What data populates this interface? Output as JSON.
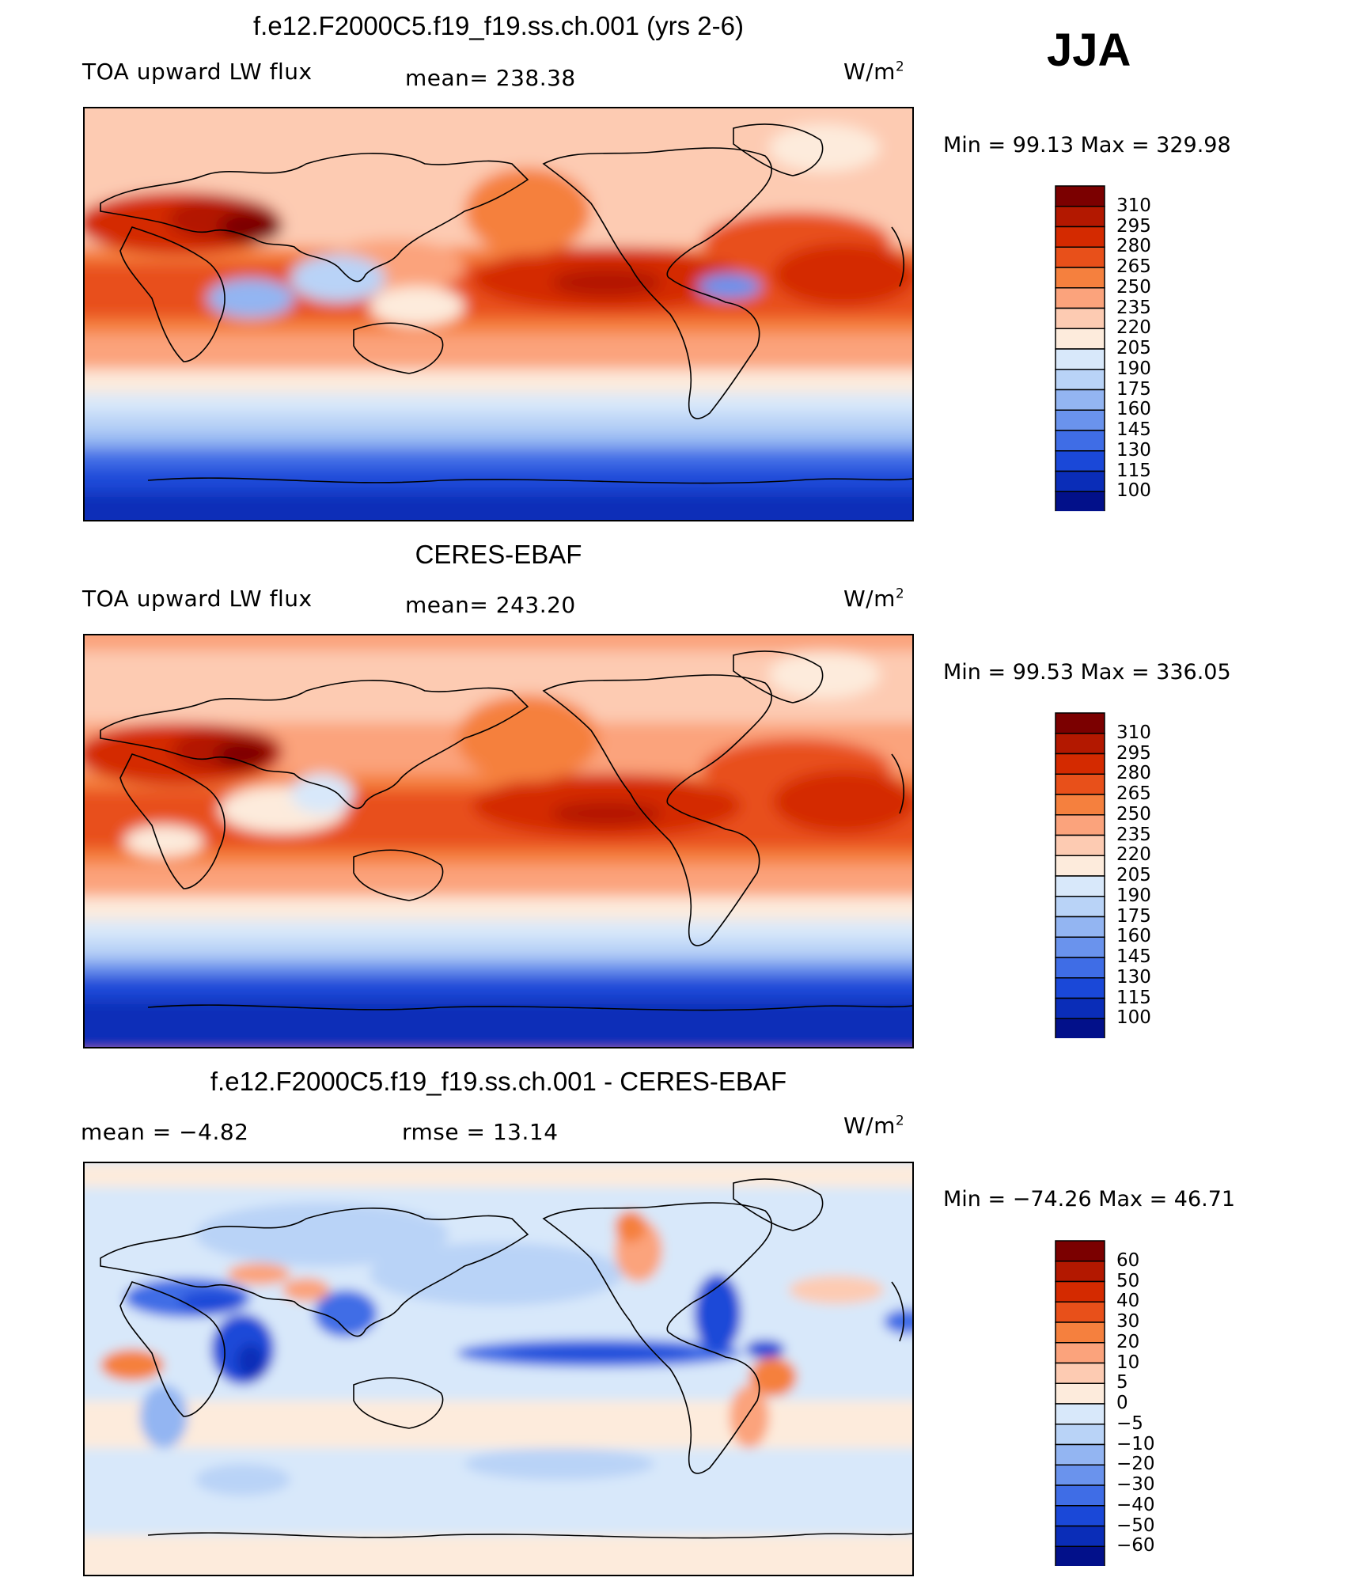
{
  "season": "JJA",
  "panels": [
    {
      "title": "f.e12.F2000C5.f19_f19.ss.ch.001 (yrs 2-6)",
      "left_label": "TOA upward LW flux",
      "center_label": "mean=  238.38",
      "units": "W/m",
      "units_exp": "2",
      "minmax": "Min =   99.13  Max  =  329.98"
    },
    {
      "title": "CERES-EBAF",
      "left_label": "TOA upward LW flux",
      "center_label": "mean=  243.20",
      "units": "W/m",
      "units_exp": "2",
      "minmax": "Min =   99.53  Max  =  336.05"
    },
    {
      "title": "f.e12.F2000C5.f19_f19.ss.ch.001 - CERES-EBAF",
      "left_label": "mean  =    −4.82",
      "center_label": "rmse  =    13.14",
      "units": "W/m",
      "units_exp": "2",
      "minmax": "Min  =  −74.26  Max  =    46.71"
    }
  ],
  "chart_data": [
    {
      "type": "heatmap",
      "title": "f.e12.F2000C5.f19_f19.ss.ch.001 (yrs 2-6)",
      "variable": "TOA upward LW flux",
      "mean": 238.38,
      "min": 99.13,
      "max": 329.98,
      "units": "W/m2",
      "colorbar_levels": [
        "310",
        "295",
        "280",
        "265",
        "250",
        "235",
        "220",
        "205",
        "190",
        "175",
        "160",
        "145",
        "130",
        "115",
        "100"
      ],
      "colorbar_colors": [
        "#7b0000",
        "#b31800",
        "#d42a00",
        "#e8501a",
        "#f5803e",
        "#fba37c",
        "#fdcbb2",
        "#fdebdc",
        "#d8e8fa",
        "#b9d3f7",
        "#93b5f2",
        "#6a93ed",
        "#3f6de6",
        "#1a48d8",
        "#0a2db8",
        "#02108a"
      ]
    },
    {
      "type": "heatmap",
      "title": "CERES-EBAF",
      "variable": "TOA upward LW flux",
      "mean": 243.2,
      "min": 99.53,
      "max": 336.05,
      "units": "W/m2",
      "colorbar_levels": [
        "310",
        "295",
        "280",
        "265",
        "250",
        "235",
        "220",
        "205",
        "190",
        "175",
        "160",
        "145",
        "130",
        "115",
        "100"
      ],
      "colorbar_colors": [
        "#7b0000",
        "#b31800",
        "#d42a00",
        "#e8501a",
        "#f5803e",
        "#fba37c",
        "#fdcbb2",
        "#fdebdc",
        "#d8e8fa",
        "#b9d3f7",
        "#93b5f2",
        "#6a93ed",
        "#3f6de6",
        "#1a48d8",
        "#0a2db8",
        "#02108a"
      ]
    },
    {
      "type": "heatmap",
      "title": "f.e12.F2000C5.f19_f19.ss.ch.001 - CERES-EBAF",
      "mean": -4.82,
      "rmse": 13.14,
      "min": -74.26,
      "max": 46.71,
      "units": "W/m2",
      "colorbar_levels": [
        "60",
        "50",
        "40",
        "30",
        "20",
        "10",
        "5",
        "0",
        "−5",
        "−10",
        "−20",
        "−30",
        "−40",
        "−50",
        "−60"
      ],
      "colorbar_colors": [
        "#7b0000",
        "#b31800",
        "#d42a00",
        "#e8501a",
        "#f5803e",
        "#fba37c",
        "#fdcbb2",
        "#fdebdc",
        "#d8e8fa",
        "#b9d3f7",
        "#93b5f2",
        "#6a93ed",
        "#3f6de6",
        "#1a48d8",
        "#0a2db8",
        "#02108a"
      ]
    }
  ]
}
